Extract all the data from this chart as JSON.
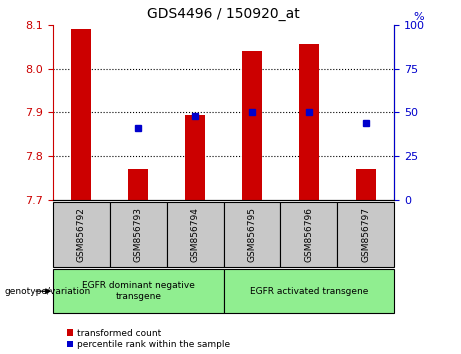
{
  "title": "GDS4496 / 150920_at",
  "samples": [
    "GSM856792",
    "GSM856793",
    "GSM856794",
    "GSM856795",
    "GSM856796",
    "GSM856797"
  ],
  "red_values": [
    8.09,
    7.77,
    7.895,
    8.04,
    8.055,
    7.77
  ],
  "blue_values": [
    null,
    7.865,
    7.892,
    7.9,
    7.9,
    7.875
  ],
  "y_min": 7.7,
  "y_max": 8.1,
  "y_ticks_left": [
    7.7,
    7.8,
    7.9,
    8.0,
    8.1
  ],
  "y_ticks_right": [
    0,
    25,
    50,
    75,
    100
  ],
  "grid_values": [
    7.8,
    7.9,
    8.0
  ],
  "group1_label": "EGFR dominant negative\ntransgene",
  "group2_label": "EGFR activated transgene",
  "group1_indices": [
    0,
    1,
    2
  ],
  "group2_indices": [
    3,
    4,
    5
  ],
  "bar_color": "#cc0000",
  "dot_color": "#0000cc",
  "legend_red_label": "transformed count",
  "legend_blue_label": "percentile rank within the sample",
  "bar_width": 0.35,
  "left_axis_color": "#cc0000",
  "right_axis_color": "#0000cc",
  "group_bg_color": "#90ee90",
  "sample_bg_color": "#c8c8c8",
  "plot_bg_color": "#ffffff"
}
